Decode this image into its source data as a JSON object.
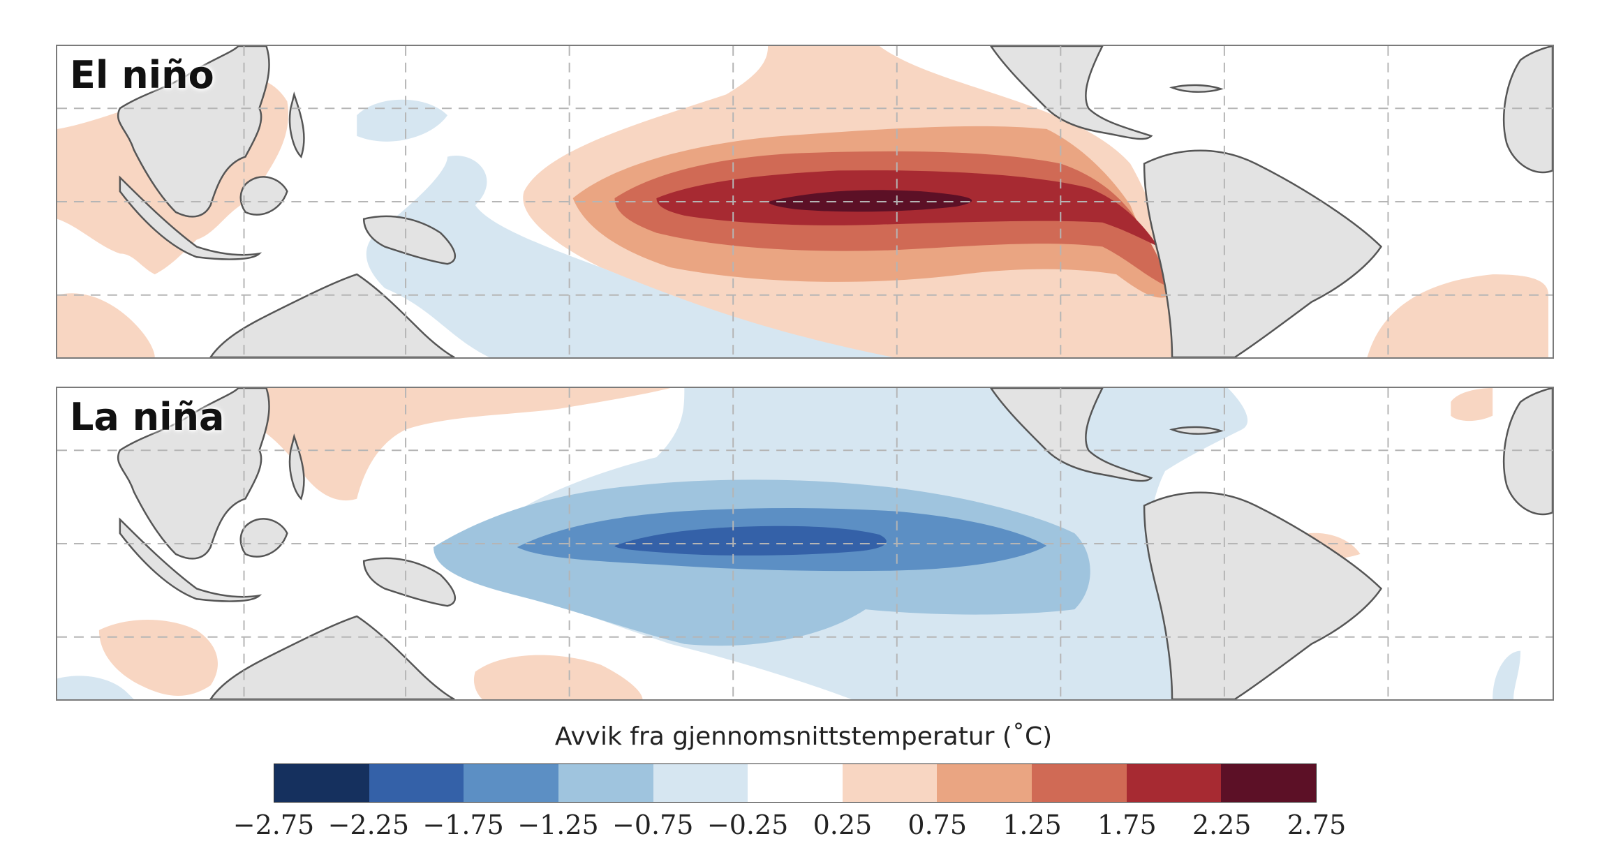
{
  "panels": {
    "elnino": {
      "label": "El niño"
    },
    "lanina": {
      "label": "La niña"
    }
  },
  "colorbar": {
    "title": "Avvik fra gjennomsnittstemperatur  (˚C)",
    "ticks": [
      "−2.75",
      "−2.25",
      "−1.75",
      "−1.25",
      "−0.75",
      "−0.25",
      "0.25",
      "0.75",
      "1.25",
      "1.75",
      "2.25",
      "2.75"
    ],
    "colors": [
      "#15305e",
      "#3461a8",
      "#5c8fc4",
      "#9fc4de",
      "#d6e6f1",
      "#ffffff",
      "#f8d6c2",
      "#eaa582",
      "#d06a55",
      "#a72a32",
      "#5c1026"
    ]
  },
  "palette": {
    "land": "#e3e3e3",
    "coast": "#555555",
    "grid": "#b5b5b5"
  }
}
